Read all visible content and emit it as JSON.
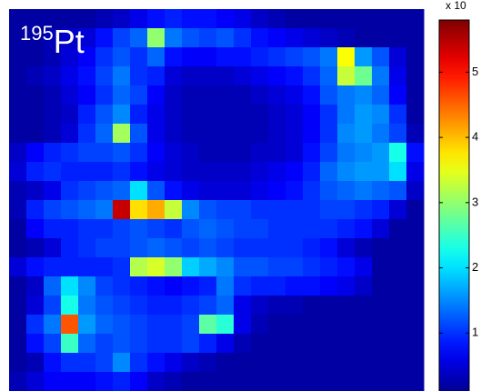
{
  "chart_data": {
    "type": "heatmap",
    "title_superscript": "195",
    "title": "Pt",
    "colorbar_label": "x 10",
    "colormap": "jet",
    "zlim": [
      0,
      5.8
    ],
    "zticks": [
      1,
      2,
      3,
      4,
      5
    ],
    "values": [
      [
        0.2,
        0.2,
        0.2,
        0.2,
        0.2,
        0.3,
        0.4,
        0.6,
        0.8,
        0.9,
        0.8,
        0.8,
        0.7,
        0.6,
        0.4,
        0.3,
        0.2,
        0.2,
        0.2,
        0.2,
        0.2,
        0.2,
        0.2,
        0.2
      ],
      [
        0.2,
        0.2,
        0.3,
        0.4,
        0.5,
        0.8,
        1.1,
        1.3,
        3.0,
        1.4,
        1.2,
        1.1,
        1.2,
        1.0,
        0.8,
        0.7,
        0.6,
        0.5,
        0.4,
        0.3,
        0.2,
        0.2,
        0.2,
        0.2
      ],
      [
        0.2,
        0.2,
        0.3,
        0.5,
        0.7,
        1.0,
        1.2,
        1.0,
        1.3,
        0.8,
        0.7,
        0.7,
        0.8,
        0.8,
        0.9,
        1.0,
        1.1,
        1.2,
        1.4,
        3.6,
        1.6,
        1.2,
        0.5,
        0.2
      ],
      [
        0.2,
        0.3,
        0.4,
        0.6,
        0.8,
        1.1,
        1.4,
        1.0,
        0.9,
        0.5,
        0.4,
        0.4,
        0.4,
        0.5,
        0.6,
        0.7,
        0.8,
        1.0,
        1.3,
        3.3,
        2.8,
        1.4,
        0.6,
        0.2
      ],
      [
        0.2,
        0.2,
        0.3,
        0.5,
        0.7,
        1.0,
        1.3,
        1.1,
        0.7,
        0.4,
        0.3,
        0.3,
        0.3,
        0.3,
        0.4,
        0.5,
        0.6,
        0.8,
        1.2,
        1.4,
        1.5,
        1.3,
        0.7,
        0.2
      ],
      [
        0.2,
        0.2,
        0.3,
        0.4,
        0.9,
        1.2,
        1.5,
        0.9,
        0.6,
        0.4,
        0.3,
        0.3,
        0.3,
        0.3,
        0.3,
        0.4,
        0.5,
        0.7,
        1.0,
        1.4,
        1.6,
        1.5,
        1.0,
        0.2
      ],
      [
        0.2,
        0.2,
        0.3,
        0.5,
        1.0,
        1.3,
        3.1,
        1.2,
        0.6,
        0.4,
        0.3,
        0.3,
        0.3,
        0.3,
        0.3,
        0.4,
        0.5,
        0.7,
        1.0,
        1.5,
        1.6,
        1.4,
        1.1,
        0.3
      ],
      [
        0.4,
        0.7,
        0.9,
        1.0,
        1.1,
        1.1,
        1.2,
        1.0,
        0.7,
        0.5,
        0.4,
        0.3,
        0.3,
        0.3,
        0.4,
        0.4,
        0.5,
        0.8,
        1.1,
        1.4,
        1.5,
        1.6,
        2.3,
        0.8
      ],
      [
        0.5,
        0.9,
        1.0,
        0.9,
        0.9,
        0.9,
        1.0,
        0.8,
        0.6,
        0.5,
        0.4,
        0.4,
        0.4,
        0.4,
        0.5,
        0.6,
        0.7,
        0.9,
        1.3,
        1.5,
        1.6,
        1.6,
        2.0,
        0.6
      ],
      [
        0.3,
        0.4,
        0.6,
        1.0,
        1.1,
        1.2,
        1.3,
        2.0,
        1.2,
        0.8,
        0.6,
        0.5,
        0.5,
        0.5,
        0.6,
        0.7,
        0.8,
        1.0,
        1.2,
        1.3,
        1.4,
        1.3,
        1.2,
        0.4
      ],
      [
        0.3,
        0.9,
        1.1,
        1.2,
        1.3,
        1.4,
        5.4,
        3.8,
        4.1,
        3.3,
        1.5,
        1.2,
        1.1,
        1.1,
        1.0,
        1.0,
        1.0,
        1.0,
        1.1,
        1.1,
        1.0,
        0.9,
        0.5,
        0.2
      ],
      [
        0.2,
        0.7,
        0.9,
        0.9,
        1.0,
        1.0,
        1.1,
        1.2,
        1.1,
        1.0,
        1.2,
        1.3,
        1.2,
        1.1,
        1.1,
        1.0,
        1.0,
        1.0,
        1.0,
        0.9,
        0.8,
        0.5,
        0.2,
        0.2
      ],
      [
        0.2,
        0.3,
        0.5,
        0.9,
        1.0,
        1.1,
        1.1,
        1.2,
        1.3,
        1.2,
        1.1,
        1.2,
        1.1,
        1.0,
        1.0,
        1.0,
        1.0,
        0.9,
        0.8,
        0.5,
        0.3,
        0.2,
        0.2,
        0.2
      ],
      [
        0.5,
        0.8,
        0.9,
        0.9,
        0.9,
        0.9,
        1.0,
        3.2,
        3.4,
        3.0,
        1.9,
        1.7,
        1.5,
        1.2,
        1.2,
        1.1,
        1.1,
        1.0,
        0.9,
        0.8,
        0.6,
        0.2,
        0.2,
        0.2
      ],
      [
        0.2,
        0.4,
        1.3,
        2.0,
        1.5,
        1.1,
        1.0,
        0.9,
        0.8,
        0.7,
        0.8,
        0.9,
        1.4,
        1.0,
        0.9,
        0.9,
        0.8,
        0.8,
        0.7,
        0.6,
        0.4,
        0.2,
        0.2,
        0.2
      ],
      [
        0.2,
        0.5,
        1.1,
        2.3,
        1.4,
        1.2,
        1.1,
        1.0,
        0.9,
        0.9,
        1.0,
        1.1,
        1.3,
        0.6,
        0.4,
        0.3,
        0.3,
        0.2,
        0.2,
        0.2,
        0.2,
        0.2,
        0.2,
        0.2
      ],
      [
        0.2,
        1.0,
        1.4,
        4.6,
        1.6,
        1.3,
        1.2,
        1.1,
        1.0,
        1.0,
        1.1,
        2.7,
        2.4,
        0.6,
        0.3,
        0.2,
        0.2,
        0.2,
        0.2,
        0.2,
        0.2,
        0.2,
        0.2,
        0.2
      ],
      [
        0.2,
        0.8,
        1.1,
        2.5,
        1.3,
        1.1,
        1.2,
        1.1,
        1.0,
        1.0,
        1.1,
        0.9,
        0.6,
        0.3,
        0.2,
        0.2,
        0.2,
        0.2,
        0.2,
        0.2,
        0.2,
        0.2,
        0.2,
        0.2
      ],
      [
        0.2,
        0.3,
        0.8,
        1.0,
        1.0,
        1.1,
        1.5,
        1.0,
        0.8,
        0.6,
        0.4,
        0.3,
        0.2,
        0.2,
        0.2,
        0.2,
        0.2,
        0.2,
        0.2,
        0.2,
        0.2,
        0.2,
        0.2,
        0.2
      ],
      [
        0.3,
        0.5,
        0.7,
        0.7,
        0.7,
        0.8,
        0.9,
        0.7,
        0.4,
        0.3,
        0.2,
        0.2,
        0.2,
        0.2,
        0.2,
        0.2,
        0.2,
        0.2,
        0.2,
        0.2,
        0.2,
        0.2,
        0.2,
        0.2
      ]
    ]
  }
}
